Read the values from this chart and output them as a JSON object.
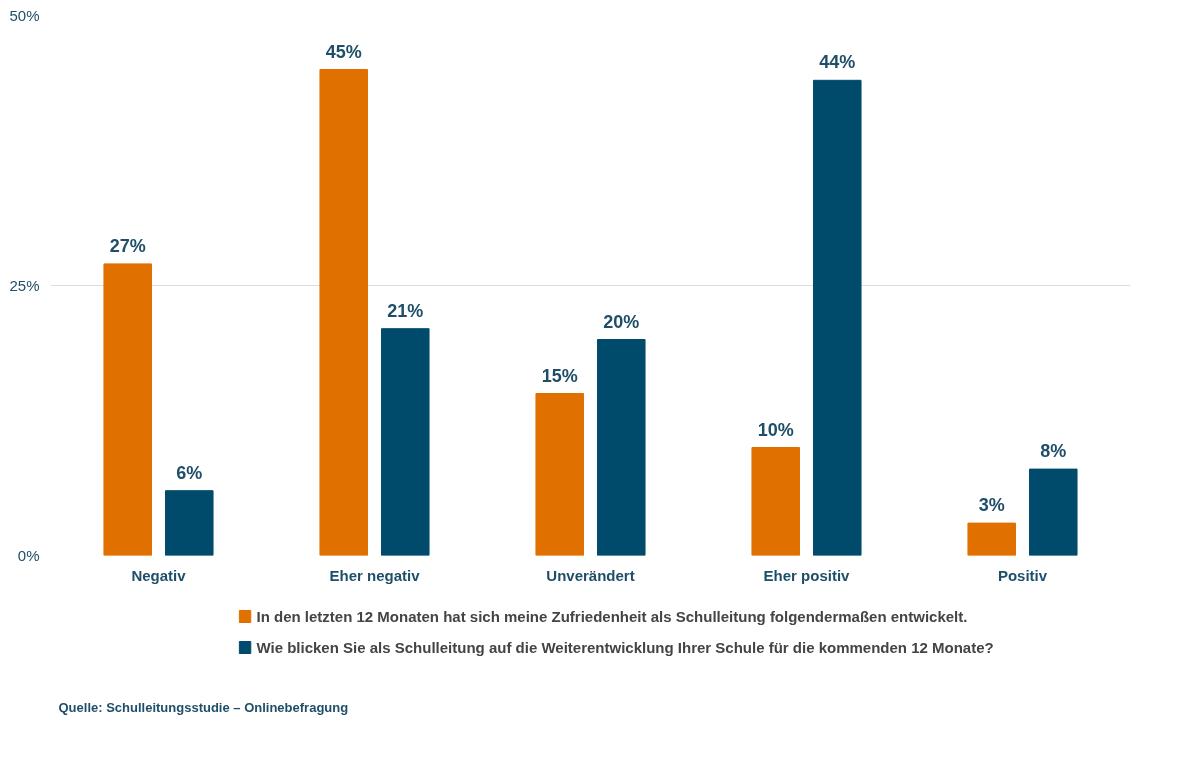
{
  "chart_data": {
    "type": "bar",
    "categories": [
      "Negativ",
      "Eher negativ",
      "Unverändert",
      "Eher positiv",
      "Positiv"
    ],
    "series": [
      {
        "name": "In den letzten 12 Monaten hat sich meine Zufriedenheit als Schulleitung folgendermaßen entwickelt.",
        "color": "#e07000",
        "values": [
          27,
          45,
          15,
          10,
          3
        ],
        "value_labels": [
          "27%",
          "45%",
          "15%",
          "10%",
          "3%"
        ]
      },
      {
        "name": "Wie blicken Sie als Schulleitung auf die Weiterentwicklung Ihrer Schule für die kommenden 12 Monate?",
        "color": "#004b6b",
        "values": [
          6,
          21,
          20,
          44,
          8
        ],
        "value_labels": [
          "6%",
          "21%",
          "20%",
          "44%",
          "8%"
        ]
      }
    ],
    "ylim": [
      0,
      50
    ],
    "yticks": [
      {
        "value": 0,
        "label": "0%"
      },
      {
        "value": 25,
        "label": "25%"
      },
      {
        "value": 50,
        "label": "50%"
      }
    ],
    "grid": "y",
    "legend": "bottom",
    "annotations": [
      "Quelle: Schulleitungsstudie – Onlinebefragung"
    ]
  }
}
